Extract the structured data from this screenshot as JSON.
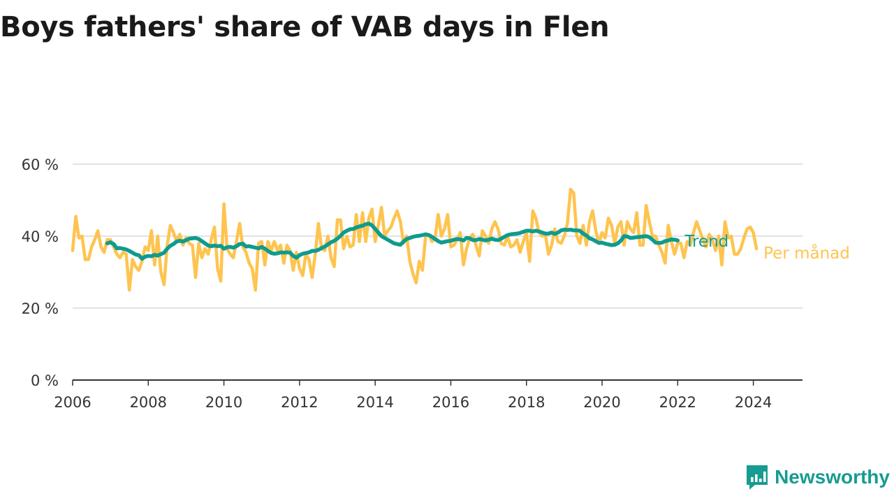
{
  "page": {
    "title": "Boys fathers' share of VAB days in Flen",
    "subtitle": ""
  },
  "brand": {
    "name": "Newsworthy",
    "color": "#169c91",
    "icon": "bar-chart-speech-bubble-icon"
  },
  "colors": {
    "per_month": "#fec44f",
    "trend": "#0f9b8e",
    "grid": "#d9d9d9",
    "axis": "#333333"
  },
  "chart_data": {
    "type": "line",
    "title": "Boys fathers' share of VAB days in Flen",
    "subtitle": "",
    "x_ticks": [
      "2006",
      "2008",
      "2010",
      "2012",
      "2014",
      "2016",
      "2018",
      "2020",
      "2022",
      "2024"
    ],
    "x_range": [
      2006,
      2025.3
    ],
    "y_ticks": [
      "0 %",
      "20 %",
      "40 %",
      "60 %"
    ],
    "ylim": [
      0,
      60
    ],
    "y_unit": "%",
    "grid": true,
    "series": [
      {
        "name": "Per månad",
        "start": "2006-01",
        "step": "month",
        "values": [
          36,
          45.5,
          39.5,
          40,
          33.5,
          33.5,
          37,
          39,
          41.5,
          37,
          35.5,
          39,
          39,
          37,
          35,
          34,
          35.5,
          35,
          25,
          33.5,
          31.5,
          30.5,
          33,
          37,
          36,
          41.5,
          32,
          40,
          30,
          26.5,
          37.5,
          43,
          41,
          38.5,
          40.5,
          37.5,
          39.5,
          38,
          37.5,
          28.5,
          38,
          34,
          36.5,
          35,
          39,
          42.5,
          31,
          27.5,
          49,
          36.5,
          35,
          34,
          38.5,
          43.5,
          37,
          35.5,
          32.5,
          31,
          25,
          38,
          38.5,
          32,
          38.5,
          36,
          38.5,
          36,
          37.5,
          32.5,
          37.5,
          36,
          30.5,
          35.5,
          31,
          29,
          35,
          33.5,
          28.5,
          35,
          43.5,
          36.5,
          36,
          40,
          34,
          31.5,
          44.5,
          44.5,
          36.5,
          40,
          37,
          37.5,
          46,
          38.5,
          46.5,
          38.5,
          45,
          47.5,
          38.5,
          43,
          48,
          40,
          41.5,
          42.5,
          45,
          47,
          44,
          38,
          40,
          33,
          29.5,
          27,
          33,
          30.5,
          40,
          40.5,
          38.5,
          39.5,
          46,
          40,
          42,
          46,
          37,
          37.5,
          39,
          41,
          32,
          36.5,
          39.5,
          40.5,
          37.5,
          34.5,
          41.5,
          40,
          38,
          42,
          44,
          42,
          38,
          37.5,
          40,
          37,
          37.5,
          39,
          35.5,
          38.5,
          41,
          33,
          47,
          45,
          41,
          40,
          40.5,
          35,
          37.5,
          42,
          38.5,
          38,
          40,
          43.5,
          53,
          52,
          40,
          38,
          43,
          37.5,
          44,
          47,
          41.5,
          38,
          41,
          39.5,
          45,
          43,
          38,
          42.5,
          44,
          37.5,
          44,
          42,
          41,
          46.5,
          37.5,
          37.5,
          48.5,
          44,
          40,
          40,
          37.5,
          35.5,
          32.5,
          43,
          38.5,
          35,
          38,
          38,
          34,
          38.5,
          37.5,
          41,
          44,
          41.5,
          39,
          37,
          40.5,
          39,
          36,
          40,
          32,
          44,
          39.5,
          40,
          35,
          35,
          36.5,
          39.5,
          42,
          42.5,
          41,
          36.5
        ]
      },
      {
        "name": "Trend",
        "start": "2006-12",
        "step": "month",
        "values": [
          38,
          38.3,
          37.8,
          36.6,
          36.7,
          36.5,
          36.3,
          35.9,
          35.4,
          34.9,
          34.7,
          33.7,
          34.3,
          34.5,
          34.4,
          34.8,
          34.6,
          35,
          35.4,
          36.5,
          37.3,
          37.8,
          38.5,
          38.7,
          38.5,
          38.9,
          39.3,
          39.4,
          39.5,
          39.2,
          38.6,
          38,
          37.4,
          37.2,
          37.4,
          37.2,
          37.3,
          36.5,
          36.9,
          37,
          36.8,
          37.2,
          37.8,
          37.9,
          37.1,
          37.2,
          37,
          36.8,
          36.6,
          37,
          36.5,
          35.9,
          35.3,
          35.1,
          35.2,
          35.5,
          35.4,
          35.5,
          35.4,
          34.5,
          34,
          34.7,
          35.1,
          35.3,
          35.5,
          35.9,
          35.9,
          36.2,
          36.7,
          37.1,
          37.7,
          38.3,
          38.7,
          39.3,
          40.1,
          41,
          41.5,
          41.9,
          42,
          42.4,
          42.7,
          42.9,
          43.3,
          43.5,
          43,
          42,
          41,
          40,
          39.5,
          39,
          38.5,
          38,
          37.8,
          37.6,
          38.5,
          39.2,
          39.5,
          39.8,
          40,
          40.1,
          40.3,
          40.5,
          40.3,
          39.8,
          39.2,
          38.6,
          38.2,
          38.4,
          38.6,
          38.7,
          39,
          39.2,
          39.1,
          38.8,
          39.5,
          39.4,
          38.9,
          38.9,
          39.2,
          39,
          38.8,
          39,
          39.3,
          39,
          38.9,
          39.3,
          39.8,
          40.3,
          40.5,
          40.6,
          40.7,
          40.9,
          41.2,
          41.5,
          41.5,
          41.3,
          41.5,
          41.3,
          41,
          40.7,
          40.7,
          41,
          40.6,
          41,
          41.6,
          41.8,
          41.7,
          41.8,
          41.6,
          41.6,
          41.5,
          40.7,
          40.2,
          39.4,
          39.1,
          38.6,
          38.1,
          38.2,
          37.9,
          37.7,
          37.5,
          37.6,
          38,
          38.8,
          40,
          39.9,
          39.5,
          39.6,
          39.7,
          39.8,
          39.9,
          40,
          39.7,
          39,
          38.2,
          38.1,
          38.2,
          38.6,
          38.8,
          39.1,
          39,
          38.8
        ]
      }
    ]
  }
}
